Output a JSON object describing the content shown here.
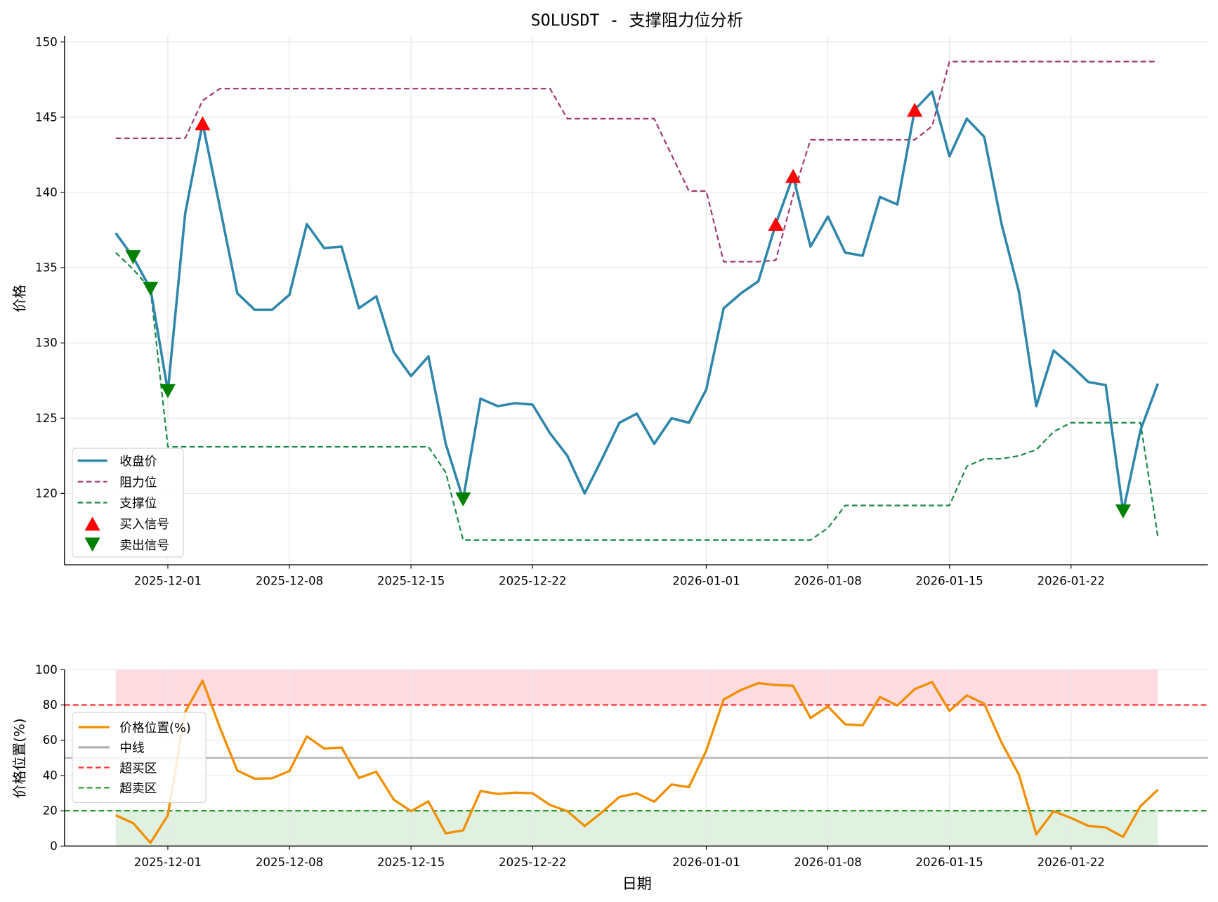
{
  "chart_data": [
    {
      "type": "line",
      "title": "SOLUSDT - 支撑阻力位分析",
      "xlabel": "",
      "ylabel": "价格",
      "ylim": [
        115.5,
        150.5
      ],
      "yticks": [
        120,
        125,
        130,
        135,
        140,
        145,
        150
      ],
      "xticks": [
        "2025-12-01",
        "2025-12-08",
        "2025-12-15",
        "2025-12-22",
        "2026-01-01",
        "2026-01-08",
        "2026-01-15",
        "2026-01-22"
      ],
      "grid": true,
      "legend_position": "lower left",
      "x": [
        "2025-11-28",
        "2025-11-29",
        "2025-11-30",
        "2025-12-01",
        "2025-12-02",
        "2025-12-03",
        "2025-12-04",
        "2025-12-05",
        "2025-12-06",
        "2025-12-07",
        "2025-12-08",
        "2025-12-09",
        "2025-12-10",
        "2025-12-11",
        "2025-12-12",
        "2025-12-13",
        "2025-12-14",
        "2025-12-15",
        "2025-12-16",
        "2025-12-17",
        "2025-12-18",
        "2025-12-19",
        "2025-12-20",
        "2025-12-21",
        "2025-12-22",
        "2025-12-23",
        "2025-12-24",
        "2025-12-25",
        "2025-12-26",
        "2025-12-27",
        "2025-12-28",
        "2025-12-29",
        "2025-12-30",
        "2025-12-31",
        "2026-01-01",
        "2026-01-02",
        "2026-01-03",
        "2026-01-04",
        "2026-01-05",
        "2026-01-06",
        "2026-01-07",
        "2026-01-08",
        "2026-01-09",
        "2026-01-10",
        "2026-01-11",
        "2026-01-12",
        "2026-01-13",
        "2026-01-14",
        "2026-01-15",
        "2026-01-16",
        "2026-01-17",
        "2026-01-18",
        "2026-01-19",
        "2026-01-20",
        "2026-01-21",
        "2026-01-22",
        "2026-01-23",
        "2026-01-24",
        "2026-01-25",
        "2026-01-26",
        "2026-01-27"
      ],
      "series": [
        {
          "name": "收盘价",
          "color": "#2e86ab",
          "style": "solid",
          "values": [
            137.3,
            135.7,
            133.6,
            126.8,
            138.6,
            144.6,
            139.0,
            133.3,
            132.2,
            132.2,
            133.2,
            137.9,
            136.3,
            136.4,
            132.3,
            133.1,
            129.4,
            127.8,
            129.1,
            123.3,
            119.6,
            126.3,
            125.8,
            126.0,
            125.9,
            124.0,
            122.5,
            120.0,
            122.3,
            124.7,
            125.3,
            123.3,
            125.0,
            124.7,
            126.9,
            132.3,
            133.3,
            134.1,
            137.9,
            141.1,
            136.4,
            138.4,
            136.0,
            135.8,
            139.7,
            139.2,
            145.5,
            146.7,
            142.4,
            144.9,
            143.7,
            137.9,
            133.4,
            125.8,
            129.5,
            128.5,
            127.4,
            127.2,
            118.8,
            124.2,
            127.3
          ]
        },
        {
          "name": "阻力位",
          "color": "#a23b72",
          "style": "dashed",
          "values": [
            143.6,
            143.6,
            143.6,
            143.6,
            143.6,
            146.1,
            146.9,
            146.9,
            146.9,
            146.9,
            146.9,
            146.9,
            146.9,
            146.9,
            146.9,
            146.9,
            146.9,
            146.9,
            146.9,
            146.9,
            146.9,
            146.9,
            146.9,
            146.9,
            146.9,
            146.9,
            144.9,
            144.9,
            144.9,
            144.9,
            144.9,
            144.9,
            142.5,
            140.1,
            140.1,
            135.4,
            135.4,
            135.4,
            135.5,
            139.8,
            143.5,
            143.5,
            143.5,
            143.5,
            143.5,
            143.5,
            143.5,
            144.4,
            148.7,
            148.7,
            148.7,
            148.7,
            148.7,
            148.7,
            148.7,
            148.7,
            148.7,
            148.7,
            148.7,
            148.7,
            148.7
          ]
        },
        {
          "name": "支撑位",
          "color": "#1b8a4a",
          "style": "dashed",
          "values": [
            136.0,
            134.9,
            133.6,
            123.1,
            123.1,
            123.1,
            123.1,
            123.1,
            123.1,
            123.1,
            123.1,
            123.1,
            123.1,
            123.1,
            123.1,
            123.1,
            123.1,
            123.1,
            123.1,
            121.4,
            116.9,
            116.9,
            116.9,
            116.9,
            116.9,
            116.9,
            116.9,
            116.9,
            116.9,
            116.9,
            116.9,
            116.9,
            116.9,
            116.9,
            116.9,
            116.9,
            116.9,
            116.9,
            116.9,
            116.9,
            116.9,
            117.7,
            119.2,
            119.2,
            119.2,
            119.2,
            119.2,
            119.2,
            119.2,
            121.8,
            122.3,
            122.3,
            122.5,
            122.9,
            124.1,
            124.7,
            124.7,
            124.7,
            124.7,
            124.7,
            117.1
          ]
        },
        {
          "name": "买入信号",
          "color": "#ff0000",
          "marker": "^",
          "points": [
            [
              "2025-12-03",
              144.6
            ],
            [
              "2026-01-05",
              137.9
            ],
            [
              "2026-01-06",
              141.1
            ],
            [
              "2026-01-13",
              145.5
            ]
          ]
        },
        {
          "name": "卖出信号",
          "color": "#008000",
          "marker": "v",
          "points": [
            [
              "2025-11-29",
              135.7
            ],
            [
              "2025-11-30",
              133.6
            ],
            [
              "2025-12-01",
              126.8
            ],
            [
              "2025-12-18",
              119.6
            ],
            [
              "2026-01-25",
              118.8
            ]
          ]
        }
      ]
    },
    {
      "type": "line",
      "title": "",
      "xlabel": "日期",
      "ylabel": "价格位置(%)",
      "ylim": [
        0,
        100
      ],
      "yticks": [
        0,
        20,
        40,
        60,
        80,
        100
      ],
      "xticks": [
        "2025-12-01",
        "2025-12-08",
        "2025-12-15",
        "2025-12-22",
        "2026-01-01",
        "2026-01-08",
        "2026-01-15",
        "2026-01-22"
      ],
      "grid": true,
      "legend_position": "center left",
      "series": [
        {
          "name": "价格位置(%)",
          "color": "#f18f01",
          "style": "solid",
          "values": [
            17.5,
            13.0,
            1.8,
            17.4,
            76.0,
            93.8,
            67.0,
            42.8,
            38.2,
            38.4,
            42.5,
            62.2,
            55.3,
            55.9,
            38.6,
            42.1,
            26.4,
            19.8,
            25.3,
            7.2,
            8.9,
            31.2,
            29.5,
            30.3,
            29.9,
            23.3,
            19.8,
            11.3,
            19.2,
            27.9,
            29.9,
            25.1,
            34.9,
            33.4,
            54.1,
            83.1,
            88.5,
            92.4,
            91.3,
            90.9,
            72.6,
            79.2,
            69.0,
            68.4,
            84.5,
            79.7,
            89.0,
            93.0,
            76.6,
            85.4,
            80.7,
            58.7,
            40.5,
            6.6,
            19.8,
            15.9,
            11.4,
            10.5,
            5.2,
            22.6,
            31.9
          ]
        },
        {
          "name": "中线",
          "color": "#b0b0b0",
          "style": "solid",
          "value": 50
        },
        {
          "name": "超买区",
          "color": "#ff3333",
          "style": "dashed",
          "value": 80
        },
        {
          "name": "超卖区",
          "color": "#2e9e2e",
          "style": "dashed",
          "value": 20
        }
      ],
      "bands": [
        {
          "from": 80,
          "to": 100,
          "color": "#ffc0c8"
        },
        {
          "from": 0,
          "to": 20,
          "color": "#c8e6c9"
        }
      ]
    }
  ]
}
